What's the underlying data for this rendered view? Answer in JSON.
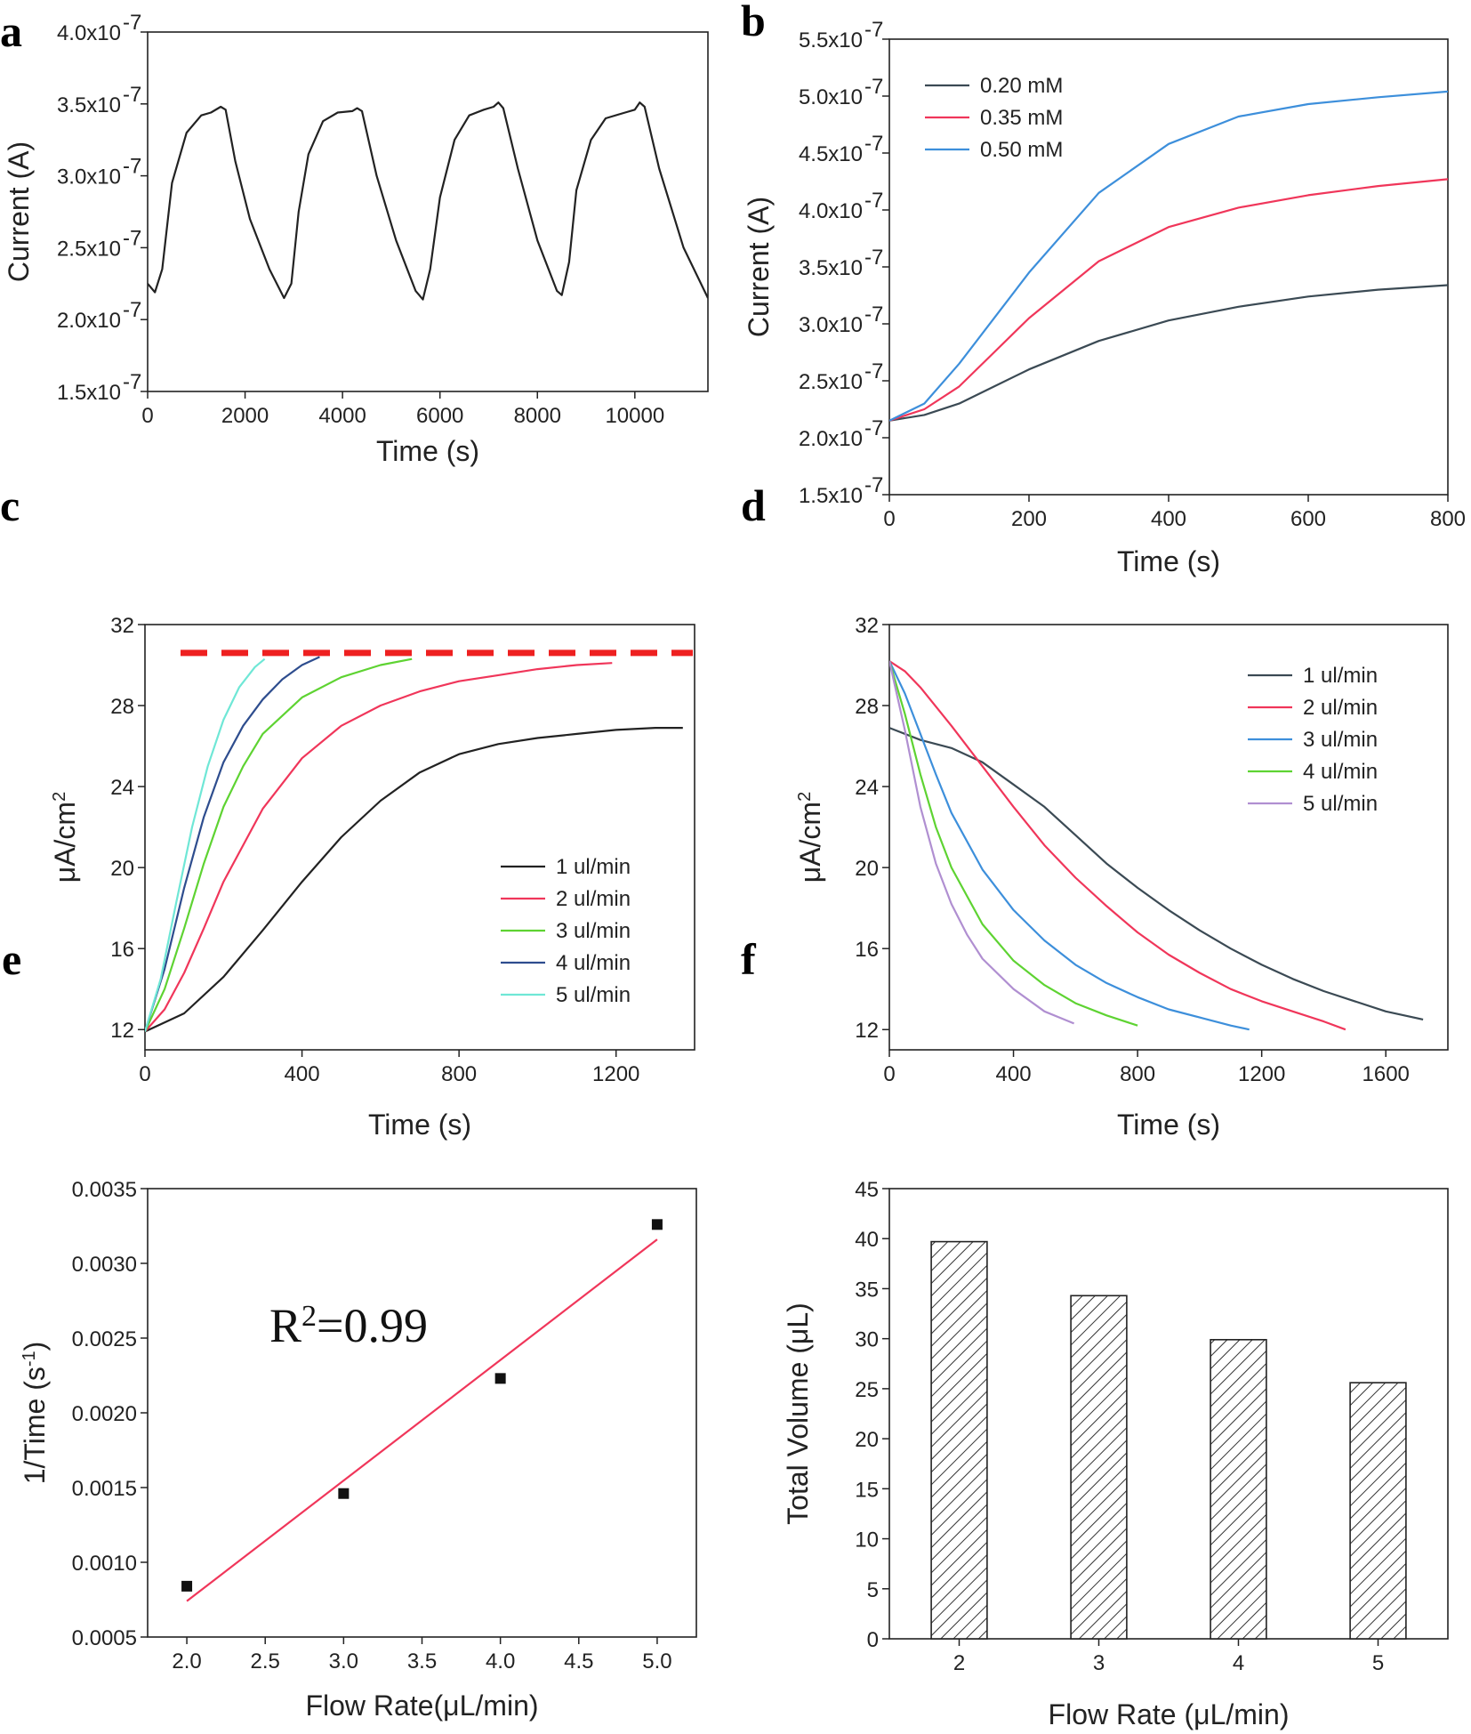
{
  "colors": {
    "black": "#222222",
    "red": "#f0365a",
    "green": "#5ed332",
    "navy": "#2e4d8e",
    "cyan": "#6fe7d6",
    "blue": "#3d8fdb",
    "purple": "#b08fd1",
    "dark_gray": "#3b4a54",
    "dashed_red": "#ee2020"
  },
  "chart_data": [
    {
      "panel": "a",
      "type": "line",
      "xlabel": "Time (s)",
      "ylabel": "Current (A)",
      "xlim": [
        0,
        11500
      ],
      "ylim": [
        1.5e-07,
        4e-07
      ],
      "xticks": [
        0,
        2000,
        4000,
        6000,
        8000,
        10000
      ],
      "yticks": [
        1.5e-07,
        2e-07,
        2.5e-07,
        3e-07,
        3.5e-07,
        4e-07
      ],
      "ytick_labels": [
        "1.5x10",
        "2.0x10",
        "2.5x10",
        "3.0x10",
        "3.5x10",
        "4.0x10"
      ],
      "ytick_exp": "-7",
      "series": [
        {
          "color": "black",
          "x": [
            0,
            150,
            300,
            500,
            800,
            1100,
            1300,
            1500,
            1600,
            1800,
            2100,
            2500,
            2800,
            2950,
            3100,
            3300,
            3600,
            3900,
            4200,
            4300,
            4400,
            4700,
            5100,
            5500,
            5650,
            5800,
            6000,
            6300,
            6600,
            6900,
            7100,
            7200,
            7300,
            7600,
            8000,
            8400,
            8500,
            8650,
            8800,
            9100,
            9400,
            9800,
            10000,
            10100,
            10200,
            10500,
            11000,
            11500
          ],
          "y": [
            2.25e-07,
            2.19e-07,
            2.35e-07,
            2.95e-07,
            3.3e-07,
            3.42e-07,
            3.44e-07,
            3.48e-07,
            3.46e-07,
            3.1e-07,
            2.7e-07,
            2.35e-07,
            2.15e-07,
            2.25e-07,
            2.75e-07,
            3.15e-07,
            3.38e-07,
            3.44e-07,
            3.45e-07,
            3.47e-07,
            3.45e-07,
            3e-07,
            2.55e-07,
            2.2e-07,
            2.14e-07,
            2.35e-07,
            2.85e-07,
            3.25e-07,
            3.42e-07,
            3.46e-07,
            3.48e-07,
            3.51e-07,
            3.47e-07,
            3.05e-07,
            2.55e-07,
            2.2e-07,
            2.17e-07,
            2.4e-07,
            2.9e-07,
            3.25e-07,
            3.4e-07,
            3.44e-07,
            3.46e-07,
            3.51e-07,
            3.48e-07,
            3.05e-07,
            2.5e-07,
            2.15e-07
          ]
        }
      ]
    },
    {
      "panel": "b",
      "type": "line",
      "xlabel": "Time (s)",
      "ylabel": "Current (A)",
      "xlim": [
        0,
        800
      ],
      "ylim": [
        1.5e-07,
        5.5e-07
      ],
      "xticks": [
        0,
        200,
        400,
        600,
        800
      ],
      "yticks": [
        1.5e-07,
        2e-07,
        2.5e-07,
        3e-07,
        3.5e-07,
        4e-07,
        4.5e-07,
        5e-07,
        5.5e-07
      ],
      "ytick_labels": [
        "1.5x10",
        "2.0x10",
        "2.5x10",
        "3.0x10",
        "3.5x10",
        "4.0x10",
        "4.5x10",
        "5.0x10",
        "5.5x10"
      ],
      "ytick_exp": "-7",
      "legend": "top-left",
      "series": [
        {
          "name": "0.20 mM",
          "color": "dark_gray",
          "x": [
            0,
            50,
            100,
            150,
            200,
            300,
            400,
            500,
            600,
            700,
            800
          ],
          "y": [
            2.15e-07,
            2.2e-07,
            2.3e-07,
            2.45e-07,
            2.6e-07,
            2.85e-07,
            3.03e-07,
            3.15e-07,
            3.24e-07,
            3.3e-07,
            3.34e-07
          ]
        },
        {
          "name": "0.35 mM",
          "color": "red",
          "x": [
            0,
            50,
            100,
            150,
            200,
            300,
            400,
            500,
            600,
            700,
            800
          ],
          "y": [
            2.15e-07,
            2.25e-07,
            2.45e-07,
            2.75e-07,
            3.05e-07,
            3.55e-07,
            3.85e-07,
            4.02e-07,
            4.13e-07,
            4.21e-07,
            4.27e-07
          ]
        },
        {
          "name": "0.50 mM",
          "color": "blue",
          "x": [
            0,
            50,
            100,
            150,
            200,
            300,
            400,
            500,
            600,
            700,
            800
          ],
          "y": [
            2.15e-07,
            2.3e-07,
            2.65e-07,
            3.05e-07,
            3.45e-07,
            4.15e-07,
            4.58e-07,
            4.82e-07,
            4.93e-07,
            4.99e-07,
            5.04e-07
          ]
        }
      ]
    },
    {
      "panel": "c",
      "type": "line",
      "xlabel": "Time (s)",
      "ylabel": "μA/cm",
      "ylabel_sup": "2",
      "xlim": [
        0,
        1400
      ],
      "ylim": [
        11,
        32
      ],
      "xticks": [
        0,
        400,
        800,
        1200
      ],
      "yticks": [
        12,
        16,
        20,
        24,
        28,
        32
      ],
      "legend": "center-right",
      "reference_line": 30.6,
      "series": [
        {
          "name": "1 ul/min",
          "color": "black",
          "x": [
            0,
            100,
            200,
            300,
            400,
            500,
            600,
            700,
            800,
            900,
            1000,
            1100,
            1200,
            1300,
            1370
          ],
          "y": [
            11.9,
            12.8,
            14.6,
            16.9,
            19.3,
            21.5,
            23.3,
            24.7,
            25.6,
            26.1,
            26.4,
            26.6,
            26.8,
            26.9,
            26.9
          ]
        },
        {
          "name": "2 ul/min",
          "color": "red",
          "x": [
            0,
            50,
            100,
            150,
            200,
            300,
            400,
            500,
            600,
            700,
            800,
            900,
            1000,
            1100,
            1190
          ],
          "y": [
            11.9,
            13.0,
            14.8,
            17.0,
            19.3,
            22.9,
            25.4,
            27.0,
            28.0,
            28.7,
            29.2,
            29.5,
            29.8,
            30.0,
            30.1
          ]
        },
        {
          "name": "3 ul/min",
          "color": "green",
          "x": [
            0,
            50,
            100,
            150,
            200,
            250,
            300,
            400,
            500,
            600,
            680
          ],
          "y": [
            11.9,
            14.0,
            17.0,
            20.2,
            23.0,
            25.0,
            26.6,
            28.4,
            29.4,
            30.0,
            30.3
          ]
        },
        {
          "name": "4 ul/min",
          "color": "navy",
          "x": [
            0,
            50,
            100,
            150,
            200,
            250,
            300,
            350,
            400,
            445
          ],
          "y": [
            11.9,
            15.0,
            19.0,
            22.5,
            25.2,
            27.0,
            28.3,
            29.3,
            30.0,
            30.4
          ]
        },
        {
          "name": "5 ul/min",
          "color": "cyan",
          "x": [
            0,
            40,
            80,
            120,
            160,
            200,
            240,
            280,
            305
          ],
          "y": [
            11.9,
            14.5,
            18.3,
            22.0,
            25.0,
            27.3,
            28.9,
            29.9,
            30.3
          ]
        }
      ]
    },
    {
      "panel": "d",
      "type": "line",
      "xlabel": "Time (s)",
      "ylabel": "μA/cm",
      "ylabel_sup": "2",
      "xlim": [
        0,
        1800
      ],
      "ylim": [
        11,
        32
      ],
      "xticks": [
        0,
        400,
        800,
        1200,
        1600
      ],
      "yticks": [
        12,
        16,
        20,
        24,
        28,
        32
      ],
      "legend": "top-right",
      "series": [
        {
          "name": "1 ul/min",
          "color": "dark_gray",
          "x": [
            0,
            100,
            200,
            300,
            400,
            500,
            600,
            700,
            800,
            900,
            1000,
            1100,
            1200,
            1300,
            1400,
            1500,
            1600,
            1720
          ],
          "y": [
            26.9,
            26.3,
            25.9,
            25.2,
            24.1,
            23.0,
            21.6,
            20.2,
            19.0,
            17.9,
            16.9,
            16.0,
            15.2,
            14.5,
            13.9,
            13.4,
            12.9,
            12.5
          ]
        },
        {
          "name": "2 ul/min",
          "color": "red",
          "x": [
            0,
            50,
            100,
            200,
            300,
            400,
            500,
            600,
            700,
            800,
            900,
            1000,
            1100,
            1200,
            1300,
            1400,
            1470
          ],
          "y": [
            30.2,
            29.7,
            28.9,
            27.0,
            25.0,
            23.0,
            21.1,
            19.5,
            18.1,
            16.8,
            15.7,
            14.8,
            14.0,
            13.4,
            12.9,
            12.4,
            12.0
          ]
        },
        {
          "name": "3 ul/min",
          "color": "blue",
          "x": [
            0,
            50,
            100,
            150,
            200,
            300,
            400,
            500,
            600,
            700,
            800,
            900,
            1000,
            1100,
            1160
          ],
          "y": [
            30.2,
            28.6,
            26.6,
            24.6,
            22.7,
            19.9,
            17.9,
            16.4,
            15.2,
            14.3,
            13.6,
            13.0,
            12.6,
            12.2,
            12.0
          ]
        },
        {
          "name": "4 ul/min",
          "color": "green",
          "x": [
            0,
            50,
            100,
            150,
            200,
            300,
            400,
            500,
            600,
            700,
            800
          ],
          "y": [
            30.2,
            27.6,
            24.6,
            22.0,
            20.0,
            17.2,
            15.4,
            14.2,
            13.3,
            12.7,
            12.2
          ]
        },
        {
          "name": "5 ul/min",
          "color": "purple",
          "x": [
            0,
            50,
            100,
            150,
            200,
            250,
            300,
            400,
            500,
            595
          ],
          "y": [
            30.2,
            26.8,
            23.0,
            20.2,
            18.2,
            16.7,
            15.5,
            14.0,
            12.9,
            12.3
          ]
        }
      ]
    },
    {
      "panel": "e",
      "type": "scatter",
      "xlabel": "Flow Rate(μL/min)",
      "ylabel": "1/Time (s",
      "ylabel_sup": "-1",
      "ylabel_end": ")",
      "xlim": [
        1.75,
        5.25
      ],
      "ylim": [
        0.0005,
        0.0035
      ],
      "xticks": [
        2.0,
        2.5,
        3.0,
        3.5,
        4.0,
        4.5,
        5.0
      ],
      "xtick_labels": [
        "2.0",
        "2.5",
        "3.0",
        "3.5",
        "4.0",
        "4.5",
        "5.0"
      ],
      "yticks": [
        0.0005,
        0.001,
        0.0015,
        0.002,
        0.0025,
        0.003,
        0.0035
      ],
      "ytick_labels": [
        "0.0005",
        "0.0010",
        "0.0015",
        "0.0020",
        "0.0025",
        "0.0030",
        "0.0035"
      ],
      "annotation": {
        "text": "R",
        "sup": "2",
        "rest": "=0.99"
      },
      "points": {
        "x": [
          2,
          3,
          4,
          5
        ],
        "y": [
          0.00084,
          0.00146,
          0.00223,
          0.00326
        ]
      },
      "fit": {
        "x": [
          2,
          5
        ],
        "y": [
          0.00074,
          0.00316
        ],
        "color": "red"
      }
    },
    {
      "panel": "f",
      "type": "bar",
      "xlabel": "Flow Rate (μL/min)",
      "ylabel": "Total Volume (μL)",
      "categories": [
        "2",
        "3",
        "4",
        "5"
      ],
      "values": [
        39.7,
        34.3,
        29.9,
        25.6
      ],
      "ylim": [
        0,
        45
      ],
      "yticks": [
        0,
        5,
        10,
        15,
        20,
        25,
        30,
        35,
        40,
        45
      ]
    }
  ]
}
